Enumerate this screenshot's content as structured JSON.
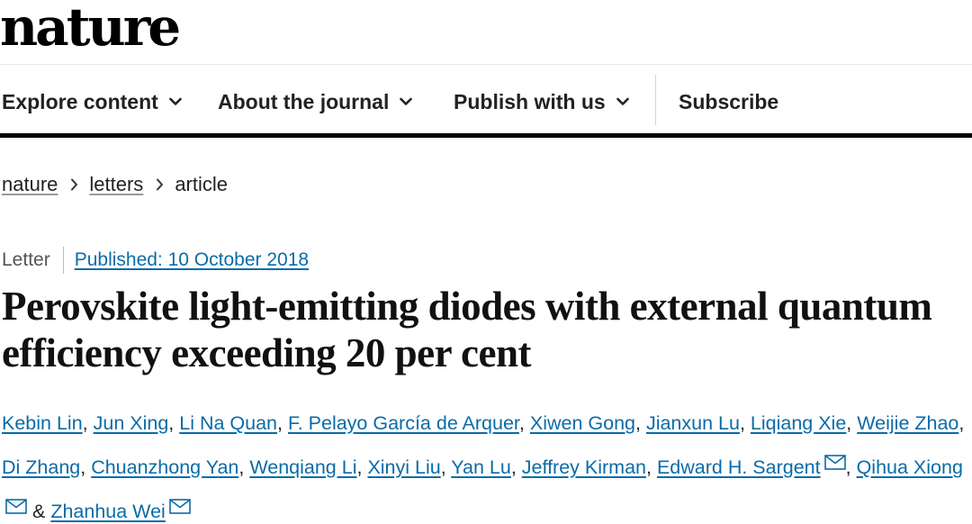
{
  "brand": {
    "logo": "nature"
  },
  "nav": {
    "items": [
      {
        "label": "Explore content",
        "has_dropdown": true
      },
      {
        "label": "About the journal",
        "has_dropdown": true
      },
      {
        "label": "Publish with us",
        "has_dropdown": true
      },
      {
        "label": "Subscribe",
        "has_dropdown": false
      }
    ]
  },
  "breadcrumb": {
    "items": [
      {
        "label": "nature",
        "link": true
      },
      {
        "label": "letters",
        "link": true
      },
      {
        "label": "article",
        "link": false
      }
    ]
  },
  "article": {
    "type": "Letter",
    "published": "Published: 10 October 2018",
    "title": "Perovskite light-emitting diodes with external quantum efficiency exceeding 20 per cent",
    "authors": [
      {
        "name": "Kebin Lin",
        "email": false
      },
      {
        "name": "Jun Xing",
        "email": false
      },
      {
        "name": "Li Na Quan",
        "email": false
      },
      {
        "name": "F. Pelayo García de Arquer",
        "email": false
      },
      {
        "name": "Xiwen Gong",
        "email": false
      },
      {
        "name": "Jianxun Lu",
        "email": false
      },
      {
        "name": "Liqiang Xie",
        "email": false
      },
      {
        "name": "Weijie Zhao",
        "email": false
      },
      {
        "name": "Di Zhang",
        "email": false
      },
      {
        "name": "Chuanzhong Yan",
        "email": false
      },
      {
        "name": "Wenqiang Li",
        "email": false
      },
      {
        "name": "Xinyi Liu",
        "email": false
      },
      {
        "name": "Yan Lu",
        "email": false
      },
      {
        "name": "Jeffrey Kirman",
        "email": false
      },
      {
        "name": "Edward H. Sargent",
        "email": true
      },
      {
        "name": "Qihua Xiong",
        "email": true
      },
      {
        "name": "Zhanhua Wei",
        "email": true
      }
    ],
    "last_separator": "&"
  },
  "colors": {
    "link": "#0a6ba8",
    "text": "#222222",
    "rule": "#000000"
  },
  "icons": {
    "dropdown": "chevron-down-icon",
    "breadcrumb_sep": "chevron-right-icon",
    "email": "envelope-icon"
  }
}
